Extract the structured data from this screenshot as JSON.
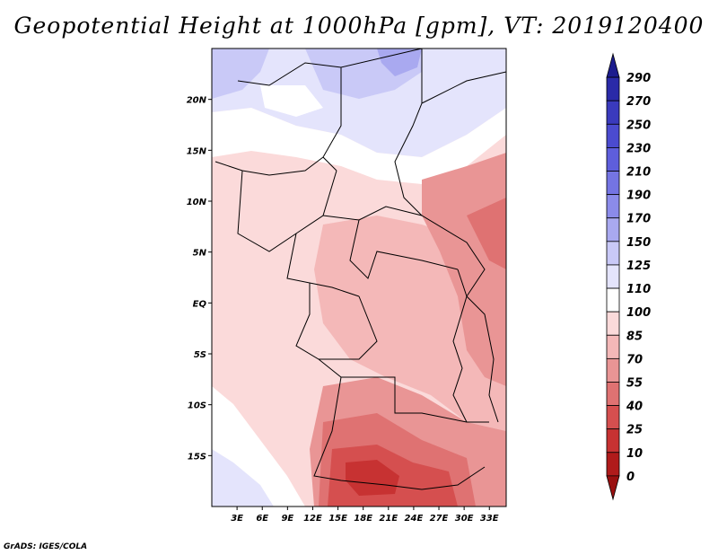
{
  "title": "Geopotential Height at 1000hPa [gpm], VT: 2019120400",
  "footer": "GrADS: IGES/COLA",
  "map": {
    "lat_labels": [
      "20N",
      "15N",
      "10N",
      "5N",
      "EQ",
      "5S",
      "10S",
      "15S"
    ],
    "lat_values": [
      20,
      15,
      10,
      5,
      0,
      -5,
      -10,
      -15
    ],
    "lon_labels": [
      "3E",
      "6E",
      "9E",
      "12E",
      "15E",
      "18E",
      "21E",
      "24E",
      "27E",
      "30E",
      "33E"
    ],
    "lon_values": [
      3,
      6,
      9,
      12,
      15,
      18,
      21,
      24,
      27,
      30,
      33
    ],
    "lon_range": [
      0,
      35
    ],
    "lat_range": [
      -20,
      25
    ]
  },
  "colorbar": {
    "levels": [
      "290",
      "270",
      "250",
      "230",
      "210",
      "190",
      "170",
      "150",
      "125",
      "110",
      "100",
      "85",
      "70",
      "55",
      "40",
      "25",
      "10",
      "0"
    ],
    "colors": [
      "#1c1c8e",
      "#2a2aa8",
      "#3a3abd",
      "#4b4bcf",
      "#5e5edc",
      "#7474e3",
      "#8b8bea",
      "#a9a9f0",
      "#c9c9f7",
      "#e4e4fc",
      "#ffffff",
      "#fbdada",
      "#f4b8b8",
      "#e99595",
      "#df7272",
      "#d54f4f",
      "#c73232",
      "#b01b1b",
      "#9a1010"
    ]
  },
  "field_colors": {
    "white": "#ffffff",
    "blue_light": "#e4e4fc",
    "blue_mid": "#c9c9f7",
    "blue_dark": "#a9a9f0",
    "pink_1": "#fbdada",
    "pink_2": "#f4b8b8",
    "red_1": "#e99595",
    "red_2": "#df7272",
    "red_3": "#d54f4f",
    "red_4": "#c73232"
  }
}
